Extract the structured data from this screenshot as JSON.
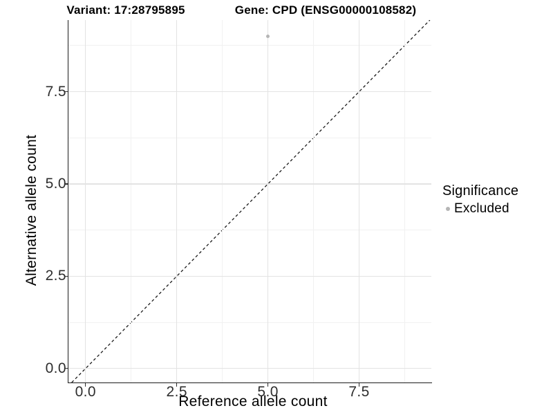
{
  "chart_data": {
    "type": "scatter",
    "title_left": "Variant: 17:28795895",
    "title_right": "Gene: CPD (ENSG00000108582)",
    "xlabel": "Reference allele count",
    "ylabel": "Alternative allele count",
    "xlim": [
      -0.47,
      9.48
    ],
    "ylim": [
      -0.38,
      9.44
    ],
    "x_major_ticks": [
      {
        "value": 0.0,
        "label": "0.0"
      },
      {
        "value": 2.5,
        "label": "2.5"
      },
      {
        "value": 5.0,
        "label": "5.0"
      },
      {
        "value": 7.5,
        "label": "7.5"
      }
    ],
    "y_major_ticks": [
      {
        "value": 0.0,
        "label": "0.0"
      },
      {
        "value": 2.5,
        "label": "2.5"
      },
      {
        "value": 5.0,
        "label": "5.0"
      },
      {
        "value": 7.5,
        "label": "7.5"
      }
    ],
    "x_minor_ticks": [
      1.25,
      3.75,
      6.25,
      8.75
    ],
    "y_minor_ticks": [
      1.25,
      3.75,
      6.25,
      8.75
    ],
    "grid": "major+minor",
    "reference_line": {
      "type": "identity",
      "slope": 1,
      "intercept": 0,
      "style": "dashed",
      "color": "#1a1a1a"
    },
    "series": [
      {
        "name": "Excluded",
        "color": "#b5b5b5",
        "points": [
          {
            "x": 5,
            "y": 9
          }
        ]
      }
    ],
    "legend": {
      "title": "Significance",
      "position": "right",
      "items": [
        {
          "label": "Excluded",
          "color": "#b5b5b5",
          "marker": "circle"
        }
      ]
    },
    "colors": {
      "background": "#ffffff",
      "grid_major": "#e3e3e3",
      "grid_minor": "#f1f1f1",
      "axis_line": "#1a1a1a",
      "tick_text": "#2e2e2e",
      "title_text": "#000000",
      "point": "#b5b5b5"
    }
  }
}
